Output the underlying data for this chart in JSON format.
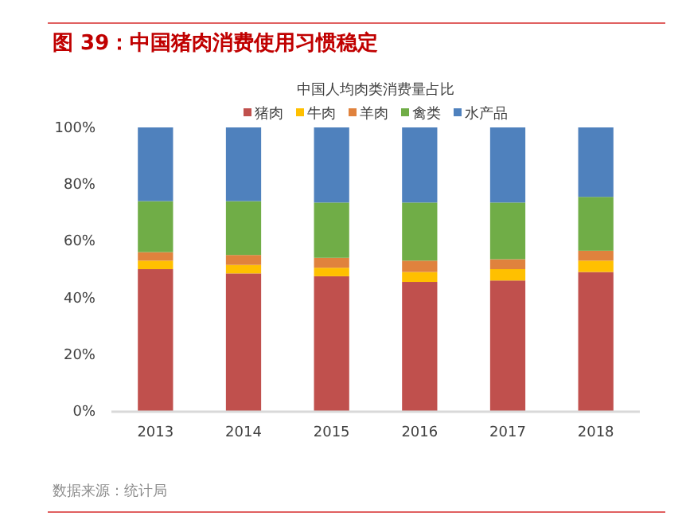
{
  "chart_data": {
    "type": "bar",
    "stacked": true,
    "title": "图 39：中国猪肉消费使用习惯稳定",
    "subtitle": "中国人均肉类消费量占比",
    "categories": [
      "2013",
      "2014",
      "2015",
      "2016",
      "2017",
      "2018"
    ],
    "series": [
      {
        "name": "猪肉",
        "color": "#c0504d",
        "values": [
          50,
          48.5,
          47.5,
          45.5,
          46,
          49
        ]
      },
      {
        "name": "牛肉",
        "color": "#ffc000",
        "values": [
          3,
          3,
          3,
          3.5,
          4,
          4
        ]
      },
      {
        "name": "羊肉",
        "color": "#e0823d",
        "values": [
          3,
          3.5,
          3.5,
          4,
          3.5,
          3.5
        ]
      },
      {
        "name": "禽类",
        "color": "#70ad47",
        "values": [
          18,
          19,
          19.5,
          20.5,
          20,
          19
        ]
      },
      {
        "name": "水产品",
        "color": "#4f81bd",
        "values": [
          26,
          26,
          26.5,
          26.5,
          26.5,
          24.5
        ]
      }
    ],
    "ylim": [
      0,
      100
    ],
    "yticks": [
      {
        "value": 0,
        "label": "0%"
      },
      {
        "value": 20,
        "label": "20%"
      },
      {
        "value": 40,
        "label": "40%"
      },
      {
        "value": 60,
        "label": "60%"
      },
      {
        "value": 80,
        "label": "80%"
      },
      {
        "value": 100,
        "label": "100%"
      }
    ],
    "legend": "top",
    "grid": false,
    "annotations": [
      "数据来源：统计局"
    ]
  }
}
